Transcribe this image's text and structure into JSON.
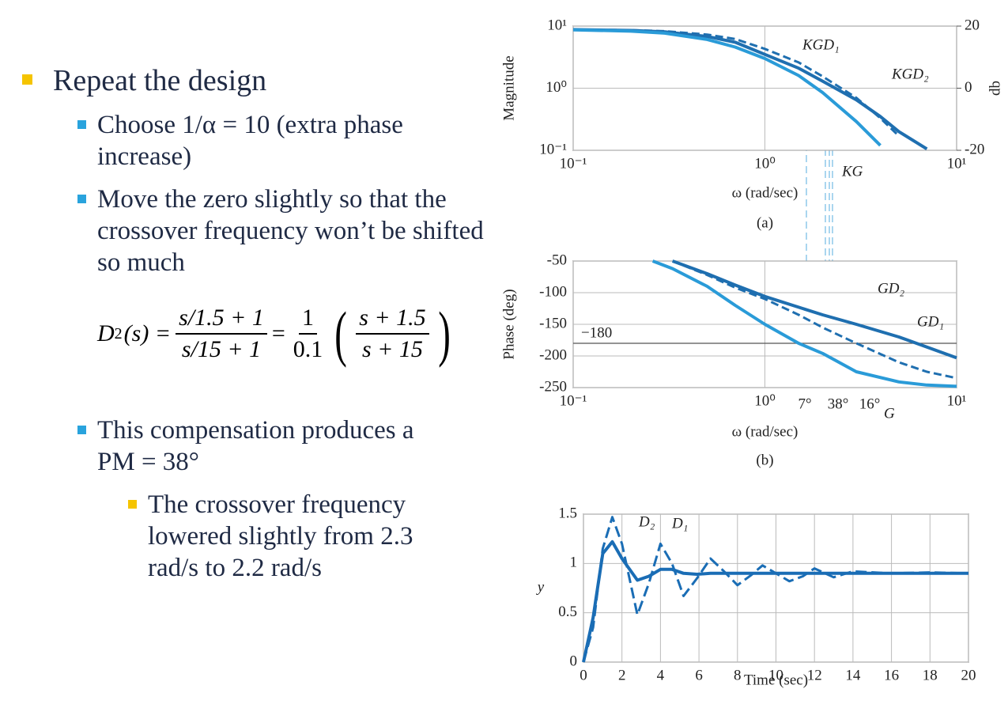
{
  "slide": {
    "heading": "Repeat the design",
    "points": [
      "Choose 1/α = 10 (extra phase increase)",
      "Move the zero slightly so that the crossover frequency won’t be shifted so much",
      "This compensation produces a PM = 38°"
    ],
    "subpoint": "The crossover frequency lowered slightly from 2.3 rad/s to 2.2 rad/s",
    "equation": {
      "lhs": "D",
      "lhs_sub": "2",
      "lhs_arg": "(s) =",
      "frac1_num": "s/1.5 + 1",
      "frac1_den": "s/15 + 1",
      "eq": "=",
      "frac2_num": "1",
      "frac2_den": "0.1",
      "frac3_num": "s + 1.5",
      "frac3_den": "s + 15"
    }
  },
  "chart_data": [
    {
      "type": "line",
      "xlabel": "ω (rad/sec)",
      "ylabel": "Magnitude",
      "y2label": "db",
      "caption": "(a)",
      "xlog": true,
      "ylog": true,
      "grid": true,
      "xlim": [
        0.1,
        10
      ],
      "ylim": [
        0.1,
        10
      ],
      "y2lim": [
        -20,
        20
      ],
      "xticks": [
        {
          "value": 0.1,
          "label": "10⁻¹"
        },
        {
          "value": 1,
          "label": "10⁰"
        },
        {
          "value": 10,
          "label": "10¹"
        }
      ],
      "yticks": [
        {
          "value": 0.1,
          "label": "10⁻¹"
        },
        {
          "value": 1,
          "label": "10⁰"
        },
        {
          "value": 10,
          "label": "10¹"
        }
      ],
      "y2ticks": [
        -20,
        0,
        20
      ],
      "x": [
        0.1,
        0.2,
        0.3,
        0.5,
        0.7,
        1,
        1.5,
        2,
        3,
        4,
        5,
        7
      ],
      "series": [
        {
          "name": "KGD₁",
          "color": "#1f6fb0",
          "dashed": true,
          "values": [
            8.8,
            8.6,
            8.3,
            7.3,
            6.2,
            4.3,
            2.6,
            1.55,
            0.7,
            0.33,
            0.17,
            null
          ]
        },
        {
          "name": "KGD₂",
          "color": "#1f6fb0",
          "values": [
            8.8,
            8.5,
            8.1,
            6.8,
            5.5,
            3.5,
            2.1,
            1.3,
            0.65,
            0.35,
            0.2,
            0.105
          ]
        },
        {
          "name": "KG",
          "color": "#2a9bd8",
          "values": [
            8.7,
            8.3,
            7.7,
            6.1,
            4.6,
            3.0,
            1.6,
            0.85,
            0.29,
            0.12,
            null,
            null
          ]
        }
      ]
    },
    {
      "type": "line",
      "xlabel": "ω (rad/sec)",
      "ylabel": "Phase (deg)",
      "caption": "(b)",
      "xlog": true,
      "grid": true,
      "xlim": [
        0.1,
        10
      ],
      "ylim": [
        -250,
        -50
      ],
      "xticks": [
        {
          "value": 0.1,
          "label": "10⁻¹"
        },
        {
          "value": 1,
          "label": "10⁰"
        },
        {
          "value": 10,
          "label": "10¹"
        }
      ],
      "yticks": [
        -50,
        -100,
        -150,
        -200,
        -250
      ],
      "hline": {
        "value": -180,
        "label": "−180"
      },
      "annotations": [
        "7°",
        "38°",
        "16°"
      ],
      "x": [
        0.26,
        0.33,
        0.5,
        0.7,
        1,
        1.5,
        2,
        3,
        5,
        7,
        10
      ],
      "series": [
        {
          "name": "GD₂",
          "color": "#1f6fb0",
          "values": [
            null,
            -50,
            -70,
            -88,
            -106,
            -123,
            -135,
            -150,
            -170,
            -186,
            -203
          ]
        },
        {
          "name": "GD₁",
          "color": "#1f6fb0",
          "dashed": true,
          "values": [
            null,
            -50,
            -72,
            -92,
            -110,
            -135,
            -155,
            -180,
            -210,
            -225,
            -235
          ]
        },
        {
          "name": "G",
          "color": "#2a9bd8",
          "values": [
            -50,
            -62,
            -90,
            -120,
            -150,
            -180,
            -196,
            -225,
            -241,
            -246,
            -248
          ]
        }
      ]
    },
    {
      "type": "line",
      "xlabel": "Time (sec)",
      "ylabel": "y",
      "grid": true,
      "xlim": [
        0,
        20
      ],
      "ylim": [
        0,
        1.5
      ],
      "xticks": [
        0,
        2,
        4,
        6,
        8,
        10,
        12,
        14,
        16,
        18,
        20
      ],
      "yticks": [
        0,
        0.5,
        1,
        1.5
      ],
      "x": [
        0,
        0.5,
        1,
        1.5,
        2,
        2.8,
        3.4,
        4,
        4.6,
        5.2,
        5.9,
        6.6,
        7.3,
        8,
        8.7,
        9.3,
        10,
        10.7,
        11.4,
        12,
        13,
        14,
        16,
        18,
        20
      ],
      "series": [
        {
          "name": "D₂",
          "color": "#1a6db5",
          "values": [
            0,
            0.45,
            1.1,
            1.22,
            1.05,
            0.83,
            0.87,
            0.94,
            0.94,
            0.9,
            0.89,
            0.9,
            0.9,
            0.9,
            0.9,
            0.9,
            0.9,
            0.9,
            0.9,
            0.9,
            0.9,
            0.9,
            0.9,
            0.9,
            0.9
          ]
        },
        {
          "name": "D₁",
          "color": "#1a6db5",
          "dashed": true,
          "values": [
            0,
            0.35,
            1.15,
            1.47,
            1.2,
            0.48,
            0.8,
            1.2,
            1.0,
            0.67,
            0.85,
            1.05,
            0.92,
            0.78,
            0.88,
            0.98,
            0.9,
            0.82,
            0.87,
            0.95,
            0.86,
            0.92,
            0.9,
            0.91,
            0.9
          ]
        }
      ]
    }
  ]
}
